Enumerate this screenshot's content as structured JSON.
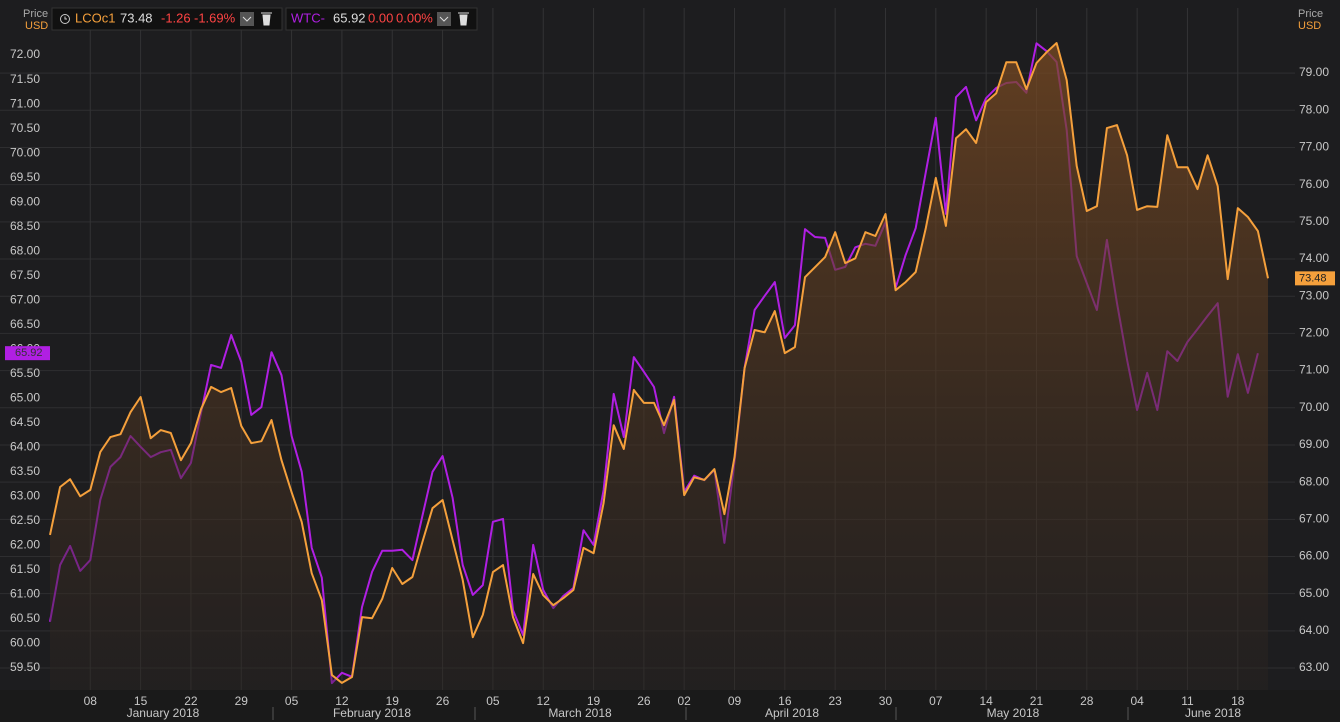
{
  "chart_data": {
    "type": "line",
    "y_label": "Price",
    "y_unit": "USD",
    "y2_label": "Price",
    "y2_unit": "USD",
    "quotes": [
      {
        "change": {
          "value": -1.26,
          "label": "-1.26"
        },
        "change_pct": {
          "value": -1.69,
          "label": "-1.69%"
        }
      },
      {
        "change": {
          "value": 0,
          "label": "0.00"
        },
        "change_pct": {
          "value": 0,
          "label": "0.00%"
        }
      }
    ],
    "months": [
      "January 2018",
      "February 2018",
      "March 2018",
      "April 2018",
      "May 2018",
      "June 2018"
    ],
    "categories": [
      null,
      null,
      null,
      null,
      "08",
      null,
      null,
      null,
      null,
      "15",
      null,
      null,
      null,
      null,
      "22",
      null,
      null,
      null,
      null,
      "29",
      null,
      null,
      null,
      null,
      "05",
      null,
      null,
      null,
      null,
      "12",
      null,
      null,
      null,
      null,
      "19",
      null,
      null,
      null,
      null,
      "26",
      null,
      null,
      null,
      null,
      "05",
      null,
      null,
      null,
      null,
      "12",
      null,
      null,
      null,
      null,
      "19",
      null,
      null,
      null,
      null,
      "26",
      null,
      null,
      null,
      "02",
      null,
      null,
      null,
      null,
      "09",
      null,
      null,
      null,
      null,
      "16",
      null,
      null,
      null,
      null,
      "23",
      null,
      null,
      null,
      null,
      "30",
      null,
      null,
      null,
      null,
      "07",
      null,
      null,
      null,
      null,
      "14",
      null,
      null,
      null,
      null,
      "21",
      null,
      null,
      null,
      null,
      "28",
      null,
      null,
      null,
      null,
      "04",
      null,
      null,
      null,
      null,
      "11",
      null,
      null,
      null,
      null,
      "18",
      null,
      null,
      null
    ],
    "series": [
      {
        "name": "LCOc1",
        "color": "#f5a03c",
        "axis": "y2",
        "values": [
          66.58,
          67.87,
          68.08,
          67.62,
          67.79,
          68.81,
          69.21,
          69.29,
          69.88,
          70.29,
          69.18,
          69.4,
          69.32,
          68.59,
          69.05,
          69.96,
          70.56,
          70.42,
          70.53,
          69.51,
          69.05,
          69.1,
          69.67,
          68.59,
          67.73,
          66.93,
          65.55,
          64.83,
          62.81,
          62.6,
          62.76,
          64.37,
          64.34,
          64.86,
          65.69,
          65.26,
          65.45,
          66.39,
          67.3,
          67.52,
          66.44,
          65.37,
          63.83,
          64.43,
          65.58,
          65.77,
          64.37,
          63.67,
          65.53,
          64.96,
          64.69,
          64.88,
          65.1,
          66.23,
          66.09,
          67.44,
          69.53,
          68.89,
          70.48,
          70.13,
          70.13,
          69.53,
          70.21,
          67.65,
          68.13,
          68.06,
          68.35,
          67.14,
          68.67,
          71.07,
          72.09,
          72.03,
          72.6,
          71.47,
          71.63,
          73.51,
          73.78,
          74.05,
          74.72,
          73.89,
          74.02,
          74.72,
          74.62,
          75.21,
          73.16,
          73.38,
          73.65,
          74.83,
          76.18,
          74.89,
          77.25,
          77.49,
          77.12,
          78.22,
          78.46,
          79.29,
          79.29,
          78.57,
          79.27,
          79.56,
          79.81,
          78.81,
          76.5,
          75.29,
          75.42,
          77.52,
          77.6,
          76.79,
          75.32,
          75.42,
          75.4,
          77.33,
          76.47,
          76.47,
          75.88,
          76.79,
          75.96,
          73.46,
          75.37,
          75.13,
          74.75,
          73.48
        ]
      },
      {
        "name": "WTC-",
        "color": "#b01fe3",
        "axis": "y",
        "values": [
          60.44,
          61.6,
          61.99,
          61.48,
          61.7,
          62.93,
          63.6,
          63.8,
          64.23,
          64.01,
          63.8,
          63.9,
          63.95,
          63.37,
          63.68,
          64.7,
          65.68,
          65.62,
          66.29,
          65.74,
          64.66,
          64.82,
          65.94,
          65.47,
          64.23,
          63.5,
          61.95,
          61.34,
          59.19,
          59.4,
          59.32,
          60.74,
          61.46,
          61.89,
          61.89,
          61.91,
          61.7,
          62.6,
          63.5,
          63.82,
          62.97,
          61.6,
          60.99,
          61.19,
          62.48,
          62.54,
          60.68,
          60.17,
          62.01,
          61.09,
          60.72,
          60.97,
          61.13,
          62.31,
          62.01,
          63.13,
          65.09,
          64.21,
          65.84,
          65.54,
          65.23,
          64.29,
          65.03,
          63.09,
          63.42,
          63.33,
          63.54,
          62.05,
          63.7,
          65.62,
          66.8,
          67.09,
          67.37,
          66.23,
          66.49,
          68.45,
          68.29,
          68.27,
          67.62,
          67.68,
          68.08,
          68.15,
          68.11,
          68.59,
          67.25,
          67.92,
          68.47,
          69.61,
          70.72,
          68.76,
          71.14,
          71.35,
          70.67,
          71.12,
          71.33,
          71.43,
          71.45,
          71.23,
          72.24,
          72.08,
          71.86,
          70.47,
          67.9,
          67.35,
          66.8,
          68.23,
          66.94,
          65.78,
          64.76,
          65.52,
          64.76,
          65.96,
          65.76,
          66.15,
          66.41,
          66.68,
          66.94,
          65.03,
          65.9,
          65.11,
          65.92,
          null
        ]
      }
    ],
    "ylim": [
      59.05,
      72.96
    ],
    "yticks": [
      {
        "value": 59.5,
        "label": "59.50"
      },
      {
        "value": 60,
        "label": "60.00"
      },
      {
        "value": 60.5,
        "label": "60.50"
      },
      {
        "value": 61,
        "label": "61.00"
      },
      {
        "value": 61.5,
        "label": "61.50"
      },
      {
        "value": 62,
        "label": "62.00"
      },
      {
        "value": 62.5,
        "label": "62.50"
      },
      {
        "value": 63,
        "label": "63.00"
      },
      {
        "value": 63.5,
        "label": "63.50"
      },
      {
        "value": 64,
        "label": "64.00"
      },
      {
        "value": 64.5,
        "label": "64.50"
      },
      {
        "value": 65,
        "label": "65.00"
      },
      {
        "value": 65.5,
        "label": "65.50"
      },
      {
        "value": 66,
        "label": "66.00"
      },
      {
        "value": 66.5,
        "label": "66.50"
      },
      {
        "value": 67,
        "label": "67.00"
      },
      {
        "value": 67.5,
        "label": "67.50"
      },
      {
        "value": 68,
        "label": "68.00"
      },
      {
        "value": 68.5,
        "label": "68.50"
      },
      {
        "value": 69,
        "label": "69.00"
      },
      {
        "value": 69.5,
        "label": "69.50"
      },
      {
        "value": 70,
        "label": "70.00"
      },
      {
        "value": 70.5,
        "label": "70.50"
      },
      {
        "value": 71,
        "label": "71.00"
      },
      {
        "value": 71.5,
        "label": "71.50"
      },
      {
        "value": 72,
        "label": "72.00"
      }
    ],
    "y2lim": [
      62.41,
      80.75
    ],
    "y2ticks": [
      {
        "value": 63,
        "label": "63.00"
      },
      {
        "value": 64,
        "label": "64.00"
      },
      {
        "value": 65,
        "label": "65.00"
      },
      {
        "value": 66,
        "label": "66.00"
      },
      {
        "value": 67,
        "label": "67.00"
      },
      {
        "value": 68,
        "label": "68.00"
      },
      {
        "value": 69,
        "label": "69.00"
      },
      {
        "value": 70,
        "label": "70.00"
      },
      {
        "value": 71,
        "label": "71.00"
      },
      {
        "value": 72,
        "label": "72.00"
      },
      {
        "value": 73,
        "label": "73.00"
      },
      {
        "value": 74,
        "label": "74.00"
      },
      {
        "value": 75,
        "label": "75.00"
      },
      {
        "value": 76,
        "label": "76.00"
      },
      {
        "value": 77,
        "label": "77.00"
      },
      {
        "value": 78,
        "label": "78.00"
      },
      {
        "value": 79,
        "label": "79.00"
      }
    ],
    "grid": true
  }
}
